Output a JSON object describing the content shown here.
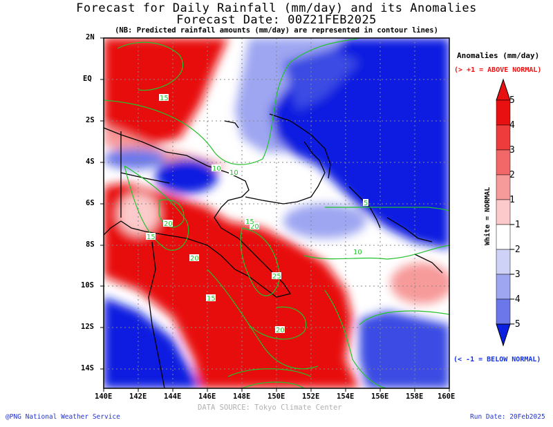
{
  "header": {
    "title": "Forecast for Daily Rainfall (mm/day) and its Anomalies",
    "forecast_date": "Forecast Date: 00Z21FEB2025",
    "note": "(NB: Predicted rainfall amounts (mm/day) are represented in contour lines)"
  },
  "axes": {
    "y_labels": [
      "2N",
      "EQ",
      "2S",
      "4S",
      "6S",
      "8S",
      "10S",
      "12S",
      "14S"
    ],
    "x_labels": [
      "140E",
      "142E",
      "144E",
      "146E",
      "148E",
      "150E",
      "152E",
      "154E",
      "156E",
      "158E",
      "160E"
    ]
  },
  "contour_labels": [
    "15",
    "10",
    "10",
    "20",
    "20",
    "15",
    "15",
    "20",
    "10",
    "5",
    "25",
    "15",
    "20"
  ],
  "legend": {
    "title": "Anomalies (mm/day)",
    "above": "(> +1 = ABOVE NORMAL)",
    "below": "(< -1 = BELOW NORMAL)",
    "normal_note": "White = NORMAL",
    "ticks": [
      "5",
      "4",
      "3",
      "2",
      "1",
      "−1",
      "−2",
      "−3",
      "−4",
      "−5"
    ],
    "colors": [
      "#e81010",
      "#ee3c3c",
      "#f26868",
      "#f79a9a",
      "#fccaca",
      "#ffffff",
      "#cfd2f7",
      "#9ea6f1",
      "#6c78ea",
      "#3a4be3",
      "#0a1fe0"
    ]
  },
  "footer": {
    "credit": "@PNG National Weather Service",
    "source": "DATA SOURCE: Tokyo Climate Center",
    "run_date": "Run Date: 20Feb2025"
  }
}
